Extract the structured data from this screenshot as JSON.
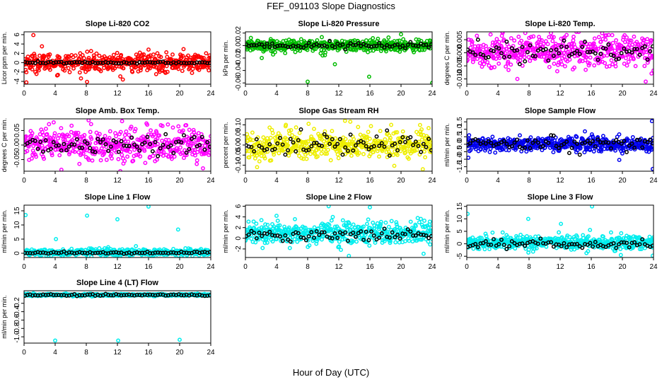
{
  "chart_data": {
    "type": "scatter",
    "title": "FEF_091103  Slope Diagnostics",
    "xlabel": "Hour of Day (UTC)",
    "x_range": [
      0,
      24
    ],
    "x_ticks": [
      0,
      4,
      8,
      12,
      16,
      20,
      24
    ],
    "x_tick_labels": [
      "0",
      "4",
      "8",
      "12",
      "16",
      "20",
      "24"
    ],
    "overlay_color": "#000000",
    "panels": [
      {
        "title": "Slope Li-820 CO2",
        "ylabel": "Licor ppm per min.",
        "color": "#ff0000",
        "ylim": [
          -4.6,
          6.6
        ],
        "yticks": [
          -4,
          -2,
          0,
          2,
          4,
          6
        ],
        "ytick_labels": [
          "-4",
          "-2",
          "0",
          "2",
          "4",
          "6"
        ],
        "center": 0,
        "spread": 1.2,
        "black_center": 0,
        "black_spread": 0.15,
        "outliers": [
          [
            1.2,
            5.9
          ],
          [
            0.3,
            -4.2
          ],
          [
            8.1,
            -4.1
          ],
          [
            16.0,
            2.8
          ],
          [
            2.3,
            3.5
          ],
          [
            20.5,
            2.9
          ],
          [
            12.7,
            -3.6
          ]
        ]
      },
      {
        "title": "Slope Li-820 Pressure",
        "ylabel": "kPa per min.",
        "color": "#00bb00",
        "ylim": [
          -0.062,
          0.022
        ],
        "yticks": [
          -0.06,
          -0.04,
          -0.02,
          0.0,
          0.02
        ],
        "ytick_labels": [
          "-0.06",
          "-0.04",
          "-0.02",
          "0.00",
          "0.02"
        ],
        "center": 0,
        "spread": 0.006,
        "black_center": 0,
        "black_spread": 0.004,
        "outliers": [
          [
            8.0,
            -0.058
          ],
          [
            15.9,
            -0.05
          ],
          [
            20.0,
            0.018
          ],
          [
            24.0,
            -0.06
          ],
          [
            2.1,
            -0.02
          ],
          [
            11.5,
            -0.03
          ]
        ]
      },
      {
        "title": "Slope Li-820 Temp.",
        "ylabel": "degrees C per min.",
        "color": "#ff00ff",
        "ylim": [
          -0.012,
          0.008
        ],
        "yticks": [
          -0.01,
          -0.005,
          0.0,
          0.005
        ],
        "ytick_labels": [
          "-0.010",
          "-0.005",
          "0.000",
          "0.005"
        ],
        "center": 0.0005,
        "spread": 0.004,
        "black_center": 0.0005,
        "black_spread": 0.003,
        "outliers": [
          [
            1.3,
            0.0065
          ],
          [
            6.5,
            -0.01
          ],
          [
            17.4,
            0.0075
          ],
          [
            23.0,
            -0.011
          ]
        ]
      },
      {
        "title": "Slope Amb. Box Temp.",
        "ylabel": "degrees C per min.",
        "color": "#ff00ff",
        "ylim": [
          -0.09,
          0.09
        ],
        "yticks": [
          -0.05,
          0.0,
          0.05
        ],
        "ytick_labels": [
          "-0.05",
          "0.00",
          "0.05"
        ],
        "center": 0,
        "spread": 0.035,
        "black_center": 0,
        "black_spread": 0.025,
        "outliers": [
          [
            4.8,
            -0.085
          ],
          [
            8.3,
            0.085
          ],
          [
            12.6,
            0.082
          ],
          [
            23.0,
            -0.08
          ]
        ]
      },
      {
        "title": "Slope Gas Stream RH",
        "ylabel": "percent per min.",
        "color": "#eeee00",
        "ylim": [
          -0.13,
          0.13
        ],
        "yticks": [
          -0.1,
          -0.05,
          0.0,
          0.05,
          0.1
        ],
        "ytick_labels": [
          "-0.10",
          "-0.05",
          "0.00",
          "0.05",
          "0.10"
        ],
        "center": 0,
        "spread": 0.045,
        "black_center": 0,
        "black_spread": 0.035,
        "outliers": [
          [
            1.5,
            -0.11
          ],
          [
            12.8,
            0.12
          ],
          [
            22.8,
            -0.12
          ],
          [
            5.2,
            0.1
          ]
        ]
      },
      {
        "title": "Slope Sample Flow",
        "ylabel": "ml/min per min.",
        "color": "#0000ee",
        "ylim": [
          -1.8,
          1.7
        ],
        "yticks": [
          -1.5,
          -1.0,
          -0.5,
          0.0,
          0.5,
          1.0,
          1.5
        ],
        "ytick_labels": [
          "-1.5",
          "-1.0",
          "-0.5",
          "0.0",
          "0.5",
          "1.0",
          "1.5"
        ],
        "center": 0,
        "spread": 0.3,
        "black_center": 0.05,
        "black_spread": 0.3,
        "outliers": [
          [
            19.6,
            -1.05
          ],
          [
            23.8,
            1.55
          ],
          [
            23.9,
            -1.65
          ],
          [
            0.2,
            -0.9
          ]
        ]
      },
      {
        "title": "Slope Line 1 Flow",
        "ylabel": "ml/min per min.",
        "color": "#00eeee",
        "ylim": [
          -1.5,
          17
        ],
        "yticks": [
          0,
          5,
          10,
          15
        ],
        "ytick_labels": [
          "0",
          "5",
          "10",
          "15"
        ],
        "center": 0.3,
        "spread": 0.7,
        "black_center": 0.2,
        "black_spread": 0.3,
        "outliers": [
          [
            0.2,
            13.5
          ],
          [
            4.1,
            5.0
          ],
          [
            8.1,
            13.3
          ],
          [
            12.0,
            12.0
          ],
          [
            16.0,
            16.5
          ],
          [
            19.8,
            8.4
          ],
          [
            12.3,
            -1.0
          ]
        ]
      },
      {
        "title": "Slope Line 2 Flow",
        "ylabel": "ml/min per min.",
        "color": "#00eeee",
        "ylim": [
          -3.6,
          6.2
        ],
        "yticks": [
          -2,
          0,
          2,
          4,
          6
        ],
        "ytick_labels": [
          "-2",
          "0",
          "2",
          "4",
          "6"
        ],
        "center": 1.0,
        "spread": 1.3,
        "black_center": 0.5,
        "black_spread": 0.9,
        "outliers": [
          [
            10.7,
            6.0
          ],
          [
            13.3,
            -3.3
          ],
          [
            16.0,
            5.8
          ],
          [
            22.9,
            -2.9
          ],
          [
            4.0,
            4.2
          ]
        ]
      },
      {
        "title": "Slope Line 3 Flow",
        "ylabel": "ml/min per min.",
        "color": "#00eeee",
        "ylim": [
          -5.5,
          15.5
        ],
        "yticks": [
          -5,
          0,
          5,
          10,
          15
        ],
        "ytick_labels": [
          "-5",
          "0",
          "5",
          "10",
          "15"
        ],
        "center": 0.5,
        "spread": 1.8,
        "black_center": 0,
        "black_spread": 1.2,
        "outliers": [
          [
            0.1,
            12.0
          ],
          [
            7.9,
            10.0
          ],
          [
            12.1,
            8.0
          ],
          [
            16.1,
            15.0
          ],
          [
            19.8,
            -4.5
          ],
          [
            23.9,
            -4.8
          ]
        ]
      },
      {
        "title": "Slope Line 4 (LT) Flow",
        "ylabel": "ml/min per min.",
        "color": "#00eeee",
        "ylim": [
          -1.15,
          0.1
        ],
        "yticks": [
          -1.0,
          -0.8,
          -0.6,
          -0.4,
          -0.2
        ],
        "ytick_labels": [
          "-1.0",
          "-0.8",
          "-0.6",
          "-0.4",
          "-0.2"
        ],
        "center": 0,
        "spread": 0.015,
        "black_center": -0.005,
        "black_spread": 0.015,
        "outliers": [
          [
            4.0,
            -1.09
          ],
          [
            12.1,
            -1.09
          ],
          [
            20.0,
            -1.07
          ]
        ]
      }
    ]
  }
}
